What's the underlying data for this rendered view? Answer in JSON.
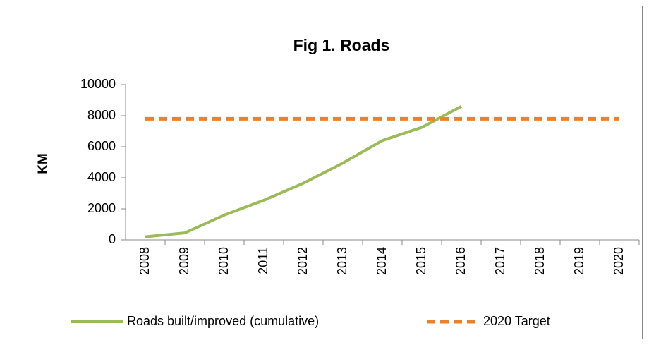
{
  "chart_data": {
    "type": "line",
    "title": "Fig 1. Roads",
    "y_label": "KM",
    "categories": [
      "2008",
      "2009",
      "2010",
      "2011",
      "2012",
      "2013",
      "2014",
      "2015",
      "2016",
      "2017",
      "2018",
      "2019",
      "2020"
    ],
    "series": [
      {
        "name": "Roads built/improved (cumulative)",
        "color": "#9bbb59",
        "dashed": false,
        "values": [
          200,
          450,
          1600,
          2550,
          3650,
          4950,
          6400,
          7250,
          8600,
          null,
          null,
          null,
          null
        ]
      },
      {
        "name": "2020 Target",
        "color": "#f07f26",
        "dashed": true,
        "values": [
          7800,
          7800,
          7800,
          7800,
          7800,
          7800,
          7800,
          7800,
          7800,
          7800,
          7800,
          7800,
          7800
        ]
      }
    ],
    "ylim": [
      0,
      10000
    ],
    "yticks": [
      0,
      2000,
      4000,
      6000,
      8000,
      10000
    ],
    "legend": "bottom"
  }
}
